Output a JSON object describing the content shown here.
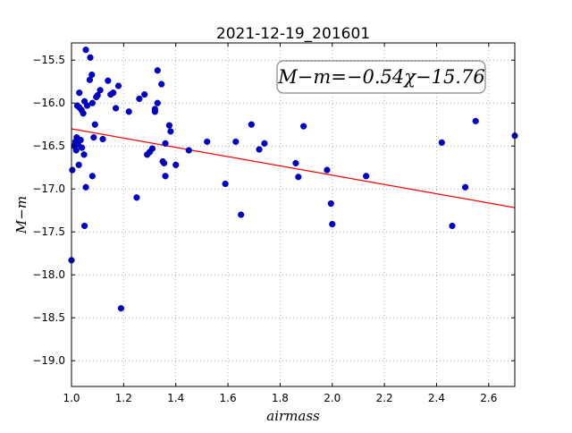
{
  "chart_data": {
    "type": "scatter",
    "title": "2021-12-19_201601",
    "xlabel": "airmass",
    "ylabel": "M−m",
    "xlim": [
      1.0,
      2.7
    ],
    "ylim": [
      -19.3,
      -15.3
    ],
    "x_ticks": [
      1.0,
      1.2,
      1.4,
      1.6,
      1.8,
      2.0,
      2.2,
      2.4,
      2.6
    ],
    "x_tick_labels": [
      "1.0",
      "1.2",
      "1.4",
      "1.6",
      "1.8",
      "2.0",
      "2.2",
      "2.4",
      "2.6"
    ],
    "y_ticks": [
      -15.5,
      -16.0,
      -16.5,
      -17.0,
      -17.5,
      -18.0,
      -18.5,
      -19.0
    ],
    "y_tick_labels": [
      "−15.5",
      "−16.0",
      "−16.5",
      "−17.0",
      "−17.5",
      "−18.0",
      "−18.5",
      "−19.0"
    ],
    "grid": true,
    "annotation": "M−m=−0.54χ−15.76",
    "annotation_position": "top-right",
    "fit": {
      "slope": -0.54,
      "intercept": -15.76,
      "color": "#ff0000"
    },
    "point_color": "#0000cc",
    "points": [
      [
        1.0,
        -17.83
      ],
      [
        1.003,
        -16.78
      ],
      [
        1.01,
        -16.5
      ],
      [
        1.015,
        -16.45
      ],
      [
        1.02,
        -16.4
      ],
      [
        1.018,
        -16.55
      ],
      [
        1.022,
        -16.03
      ],
      [
        1.025,
        -16.48
      ],
      [
        1.028,
        -16.72
      ],
      [
        1.03,
        -16.05
      ],
      [
        1.03,
        -15.88
      ],
      [
        1.035,
        -16.43
      ],
      [
        1.038,
        -16.08
      ],
      [
        1.04,
        -16.52
      ],
      [
        1.045,
        -16.12
      ],
      [
        1.048,
        -16.6
      ],
      [
        1.05,
        -17.43
      ],
      [
        1.05,
        -15.98
      ],
      [
        1.055,
        -16.98
      ],
      [
        1.055,
        -15.38
      ],
      [
        1.06,
        -16.03
      ],
      [
        1.07,
        -15.73
      ],
      [
        1.072,
        -15.47
      ],
      [
        1.078,
        -15.67
      ],
      [
        1.08,
        -16.0
      ],
      [
        1.08,
        -16.85
      ],
      [
        1.085,
        -16.4
      ],
      [
        1.09,
        -16.25
      ],
      [
        1.095,
        -15.93
      ],
      [
        1.1,
        -15.91
      ],
      [
        1.11,
        -15.85
      ],
      [
        1.12,
        -16.42
      ],
      [
        1.14,
        -15.74
      ],
      [
        1.15,
        -15.9
      ],
      [
        1.16,
        -15.88
      ],
      [
        1.17,
        -16.06
      ],
      [
        1.18,
        -15.8
      ],
      [
        1.19,
        -18.39
      ],
      [
        1.22,
        -16.1
      ],
      [
        1.25,
        -17.1
      ],
      [
        1.26,
        -15.95
      ],
      [
        1.28,
        -15.9
      ],
      [
        1.29,
        -16.6
      ],
      [
        1.3,
        -16.57
      ],
      [
        1.31,
        -16.53
      ],
      [
        1.32,
        -16.07
      ],
      [
        1.32,
        -16.1
      ],
      [
        1.33,
        -15.62
      ],
      [
        1.33,
        -16.0
      ],
      [
        1.345,
        -15.78
      ],
      [
        1.35,
        -16.68
      ],
      [
        1.355,
        -16.7
      ],
      [
        1.36,
        -16.47
      ],
      [
        1.36,
        -16.85
      ],
      [
        1.375,
        -16.26
      ],
      [
        1.38,
        -16.33
      ],
      [
        1.4,
        -16.72
      ],
      [
        1.45,
        -16.55
      ],
      [
        1.52,
        -16.45
      ],
      [
        1.59,
        -16.94
      ],
      [
        1.63,
        -16.45
      ],
      [
        1.65,
        -17.3
      ],
      [
        1.69,
        -16.25
      ],
      [
        1.72,
        -16.54
      ],
      [
        1.74,
        -16.47
      ],
      [
        1.86,
        -16.7
      ],
      [
        1.87,
        -16.86
      ],
      [
        1.89,
        -16.27
      ],
      [
        1.98,
        -16.78
      ],
      [
        1.995,
        -17.17
      ],
      [
        2.0,
        -17.41
      ],
      [
        2.13,
        -16.85
      ],
      [
        2.42,
        -16.46
      ],
      [
        2.46,
        -17.43
      ],
      [
        2.51,
        -16.98
      ],
      [
        2.55,
        -16.21
      ],
      [
        2.7,
        -16.38
      ]
    ]
  }
}
